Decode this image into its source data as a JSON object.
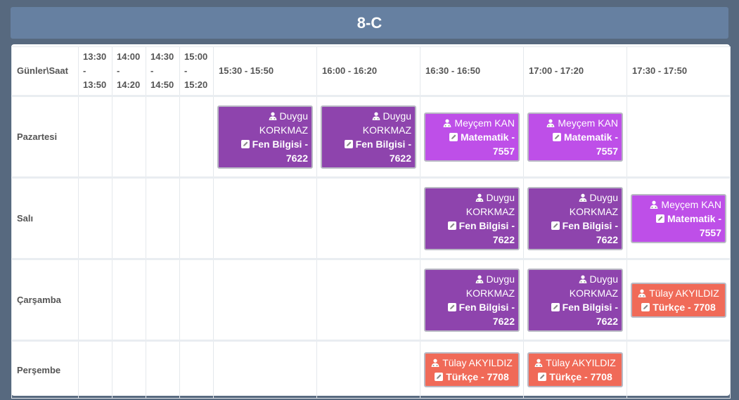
{
  "title": "8-C",
  "header": {
    "corner": "Günler\\Saat",
    "slots": [
      [
        "13:30",
        "-",
        "13:50"
      ],
      [
        "14:00",
        "-",
        "14:20"
      ],
      [
        "14:30",
        "-",
        "14:50"
      ],
      [
        "15:00",
        "-",
        "15:20"
      ],
      "15:30 - 15:50",
      "16:00 - 16:20",
      "16:30 - 16:50",
      "17:00 - 17:20",
      "17:30 - 17:50"
    ]
  },
  "colors": {
    "fen": "#8e44ad",
    "mat": "#be4fe8",
    "tur": "#f06a58"
  },
  "rows": [
    {
      "day": "Pazartesi",
      "cells": [
        null,
        null,
        null,
        null,
        {
          "teacher": "Duygu KORKMAZ",
          "lesson": "Fen Bilgisi - 7622",
          "kind": "fen"
        },
        {
          "teacher": "Duygu KORKMAZ",
          "lesson": "Fen Bilgisi - 7622",
          "kind": "fen"
        },
        {
          "teacher": "Meyçem KAN",
          "lesson": "Matematik - 7557",
          "kind": "mat"
        },
        {
          "teacher": "Meyçem KAN",
          "lesson": "Matematik - 7557",
          "kind": "mat"
        },
        null
      ]
    },
    {
      "day": "Salı",
      "cells": [
        null,
        null,
        null,
        null,
        null,
        null,
        {
          "teacher": "Duygu KORKMAZ",
          "lesson": "Fen Bilgisi - 7622",
          "kind": "fen"
        },
        {
          "teacher": "Duygu KORKMAZ",
          "lesson": "Fen Bilgisi - 7622",
          "kind": "fen"
        },
        {
          "teacher": "Meyçem KAN",
          "lesson": "Matematik - 7557",
          "kind": "mat"
        }
      ]
    },
    {
      "day": "Çarşamba",
      "cells": [
        null,
        null,
        null,
        null,
        null,
        null,
        {
          "teacher": "Duygu KORKMAZ",
          "lesson": "Fen Bilgisi - 7622",
          "kind": "fen"
        },
        {
          "teacher": "Duygu KORKMAZ",
          "lesson": "Fen Bilgisi - 7622",
          "kind": "fen"
        },
        {
          "teacher": "Tülay AKYILDIZ",
          "lesson": "Türkçe - 7708",
          "kind": "tur"
        }
      ]
    },
    {
      "day": "Perşembe",
      "cells": [
        null,
        null,
        null,
        null,
        null,
        null,
        {
          "teacher": "Tülay AKYILDIZ",
          "lesson": "Türkçe - 7708",
          "kind": "tur"
        },
        {
          "teacher": "Tülay AKYILDIZ",
          "lesson": "Türkçe - 7708",
          "kind": "tur"
        },
        null
      ]
    }
  ],
  "icons": {
    "teacher": "user-group-icon",
    "lesson": "edit-icon"
  }
}
